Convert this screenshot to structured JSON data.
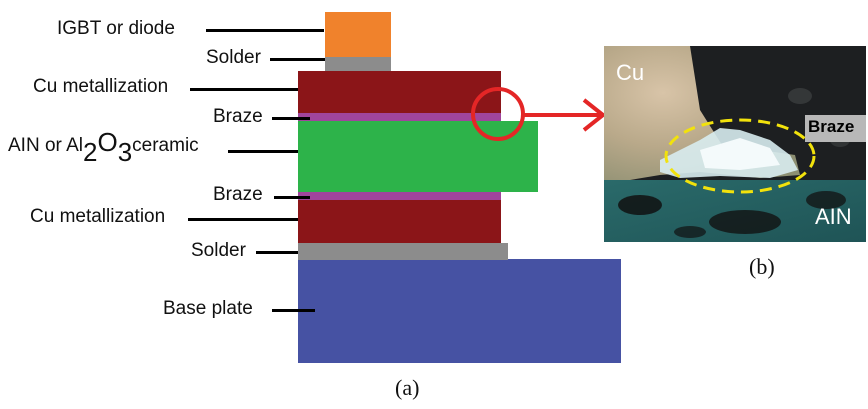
{
  "diagram": {
    "labels": {
      "igbt": "IGBT or diode",
      "solder_top": "Solder",
      "cu_top": "Cu metallization",
      "braze_top": "Braze",
      "ceramic_pre": "AIN or Al",
      "ceramic_sub1": "2",
      "ceramic_mid": "O",
      "ceramic_sub2": "3",
      "ceramic_post": "ceramic",
      "braze_bottom": "Braze",
      "cu_bottom": "Cu metallization",
      "solder_bottom": "Solder",
      "base": "Base plate"
    },
    "micrograph": {
      "cu": "Cu",
      "braze": "Braze",
      "aln": "AIN"
    },
    "captions": {
      "a": "(a)",
      "b": "(b)"
    },
    "colors": {
      "chip": "#f0822c",
      "solder": "#8c8c8c",
      "copper": "#8b1518",
      "braze": "#a0459c",
      "ceramic": "#2db34a",
      "base": "#4652a3",
      "highlight": "#e42626",
      "dash": "#f2e20c"
    }
  }
}
